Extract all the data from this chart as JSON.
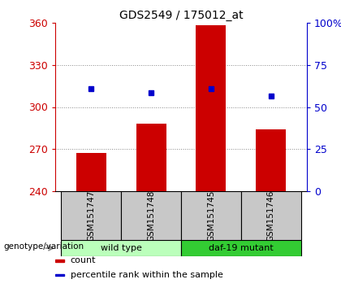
{
  "title": "GDS2549 / 175012_at",
  "samples": [
    "GSM151747",
    "GSM151748",
    "GSM151745",
    "GSM151746"
  ],
  "bar_values": [
    267,
    288,
    358,
    284
  ],
  "bar_baseline": 240,
  "percentile_values": [
    313,
    310,
    313,
    308
  ],
  "left_ylim": [
    240,
    360
  ],
  "left_yticks": [
    240,
    270,
    300,
    330,
    360
  ],
  "right_ylim": [
    0,
    100
  ],
  "right_yticks": [
    0,
    25,
    50,
    75,
    100
  ],
  "right_yticklabels": [
    "0",
    "25",
    "50",
    "75",
    "100%"
  ],
  "bar_color": "#cc0000",
  "marker_color": "#0000cc",
  "left_tick_color": "#cc0000",
  "right_tick_color": "#0000cc",
  "groups": [
    {
      "label": "wild type",
      "indices": [
        0,
        1
      ],
      "color": "#bbffbb"
    },
    {
      "label": "daf-19 mutant",
      "indices": [
        2,
        3
      ],
      "color": "#33cc33"
    }
  ],
  "group_label": "genotype/variation",
  "legend_items": [
    {
      "color": "#cc0000",
      "label": "count"
    },
    {
      "color": "#0000cc",
      "label": "percentile rank within the sample"
    }
  ],
  "dotted_grid_values": [
    270,
    300,
    330
  ],
  "sample_box_color": "#c8c8c8",
  "background_color": "#ffffff"
}
